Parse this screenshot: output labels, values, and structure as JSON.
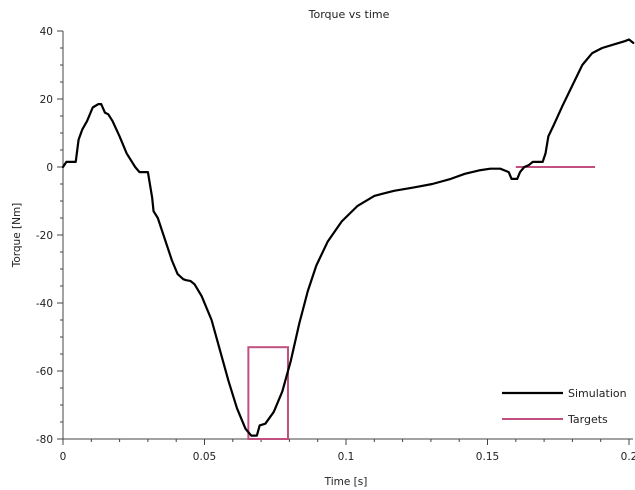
{
  "chart_data": {
    "type": "line",
    "title": "Torque vs time",
    "xlabel": "Time [s]",
    "ylabel": "Torque [Nm]",
    "xlim": [
      0,
      0.2
    ],
    "ylim": [
      -80,
      40
    ],
    "x_ticks": [
      0,
      0.05,
      0.1,
      0.15,
      0.2
    ],
    "x_tick_labels": [
      "0",
      "0.05",
      "0.1",
      "0.15",
      "0.2"
    ],
    "y_ticks": [
      40,
      20,
      0,
      -20,
      -40,
      -60,
      -80
    ],
    "y_tick_labels": [
      "40",
      "20",
      "0",
      "-20",
      "-40",
      "-60",
      "-80"
    ],
    "grid": false,
    "legend": "bottom-right",
    "colors": {
      "simulation": "#000000",
      "targets": "#c05080"
    },
    "series": [
      {
        "name": "Simulation",
        "type": "line",
        "color": "#000000",
        "points": [
          [
            0.0,
            0.0
          ],
          [
            0.0012,
            1.5
          ],
          [
            0.0035,
            1.5
          ],
          [
            0.0045,
            1.5
          ],
          [
            0.0055,
            8
          ],
          [
            0.0068,
            11
          ],
          [
            0.0085,
            13.5
          ],
          [
            0.0105,
            17.5
          ],
          [
            0.0125,
            18.5
          ],
          [
            0.0135,
            18.5
          ],
          [
            0.0148,
            16
          ],
          [
            0.016,
            15.5
          ],
          [
            0.0175,
            13.5
          ],
          [
            0.02,
            9
          ],
          [
            0.0225,
            4
          ],
          [
            0.0255,
            0
          ],
          [
            0.027,
            -1.5
          ],
          [
            0.0285,
            -1.5
          ],
          [
            0.03,
            -1.5
          ],
          [
            0.0315,
            -9
          ],
          [
            0.032,
            -13
          ],
          [
            0.0335,
            -15
          ],
          [
            0.0355,
            -20
          ],
          [
            0.0385,
            -27.5
          ],
          [
            0.0405,
            -31.5
          ],
          [
            0.0425,
            -33
          ],
          [
            0.0435,
            -33.3
          ],
          [
            0.045,
            -33.5
          ],
          [
            0.0465,
            -34.5
          ],
          [
            0.049,
            -38
          ],
          [
            0.0525,
            -45
          ],
          [
            0.0555,
            -54
          ],
          [
            0.0585,
            -63
          ],
          [
            0.0615,
            -71
          ],
          [
            0.0645,
            -77
          ],
          [
            0.0665,
            -79
          ],
          [
            0.0685,
            -79
          ],
          [
            0.0695,
            -76
          ],
          [
            0.0715,
            -75.5
          ],
          [
            0.0745,
            -72
          ],
          [
            0.0775,
            -66
          ],
          [
            0.0805,
            -57
          ],
          [
            0.0835,
            -46
          ],
          [
            0.0865,
            -36.5
          ],
          [
            0.0895,
            -29
          ],
          [
            0.0935,
            -22
          ],
          [
            0.0985,
            -16
          ],
          [
            0.104,
            -11.5
          ],
          [
            0.11,
            -8.5
          ],
          [
            0.117,
            -7
          ],
          [
            0.124,
            -6
          ],
          [
            0.1305,
            -5
          ],
          [
            0.137,
            -3.5
          ],
          [
            0.142,
            -2
          ],
          [
            0.147,
            -1
          ],
          [
            0.151,
            -0.5
          ],
          [
            0.1545,
            -0.5
          ],
          [
            0.156,
            -1
          ],
          [
            0.1575,
            -1.5
          ],
          [
            0.1585,
            -3.5
          ],
          [
            0.1605,
            -3.5
          ],
          [
            0.1615,
            -1.5
          ],
          [
            0.163,
            0
          ],
          [
            0.1645,
            0.5
          ],
          [
            0.166,
            1.5
          ],
          [
            0.1695,
            1.5
          ],
          [
            0.1705,
            4
          ],
          [
            0.1715,
            9
          ],
          [
            0.1735,
            12.5
          ],
          [
            0.1765,
            18
          ],
          [
            0.18,
            24
          ],
          [
            0.1835,
            30
          ],
          [
            0.187,
            33.5
          ],
          [
            0.1905,
            35
          ],
          [
            0.1945,
            36
          ],
          [
            0.1985,
            37
          ],
          [
            0.2,
            37.5
          ],
          [
            0.2015,
            36.5
          ]
        ]
      },
      {
        "name": "Targets",
        "type": "shape",
        "color": "#c05080",
        "rectangle": {
          "x": [
            0.0655,
            0.0795
          ],
          "y": [
            -80,
            -53
          ]
        },
        "segment": {
          "x": [
            0.16,
            0.188
          ],
          "y": [
            0,
            0
          ]
        }
      }
    ]
  }
}
